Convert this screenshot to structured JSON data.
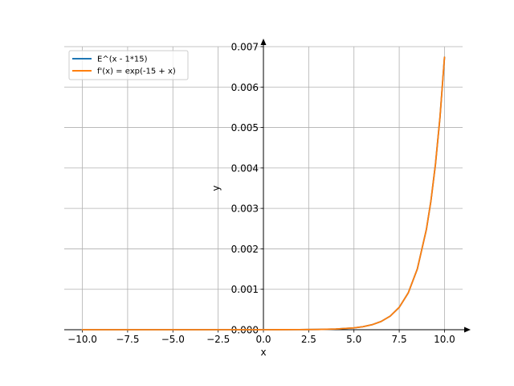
{
  "chart_data": {
    "type": "line",
    "title": "",
    "xlabel": "x",
    "ylabel": "y",
    "xlim": [
      -11,
      11
    ],
    "ylim": [
      0,
      0.007
    ],
    "grid": true,
    "legend_position": "top-left",
    "xticks": [
      -10,
      -7.5,
      -5,
      -2.5,
      0,
      2.5,
      5,
      7.5,
      10
    ],
    "xtick_labels": [
      "−10.0",
      "−7.5",
      "−5.0",
      "−2.5",
      "0.0",
      "2.5",
      "5.0",
      "7.5",
      "10.0"
    ],
    "yticks": [
      0,
      0.001,
      0.002,
      0.003,
      0.004,
      0.005,
      0.006,
      0.007
    ],
    "ytick_labels": [
      "0.000",
      "0.001",
      "0.002",
      "0.003",
      "0.004",
      "0.005",
      "0.006",
      "0.007"
    ],
    "x": [
      -10,
      -8,
      -6,
      -4,
      -2,
      0,
      1,
      2,
      3,
      4,
      5,
      5.5,
      6,
      6.5,
      7,
      7.5,
      8,
      8.5,
      9,
      9.25,
      9.5,
      9.75,
      10
    ],
    "series": [
      {
        "name": "E^(x - 1*15)",
        "color": "#1f77b4",
        "values": [
          0.0,
          0.0,
          0.0,
          0.0,
          2e-07,
          3e-07,
          8e-07,
          2.3e-06,
          6.1e-06,
          1.67e-05,
          4.54e-05,
          7.49e-05,
          0.0001234,
          0.0002035,
          0.0003355,
          0.0005531,
          0.0009119,
          0.0015034,
          0.0024788,
          0.0031828,
          0.0040868,
          0.0052475,
          0.0067379
        ]
      },
      {
        "name": "f'(x) = exp(-15 + x)",
        "color": "#ff7f0e",
        "values": [
          0.0,
          0.0,
          0.0,
          0.0,
          2e-07,
          3e-07,
          8e-07,
          2.3e-06,
          6.1e-06,
          1.67e-05,
          4.54e-05,
          7.49e-05,
          0.0001234,
          0.0002035,
          0.0003355,
          0.0005531,
          0.0009119,
          0.0015034,
          0.0024788,
          0.0031828,
          0.0040868,
          0.0052475,
          0.0067379
        ]
      }
    ]
  }
}
